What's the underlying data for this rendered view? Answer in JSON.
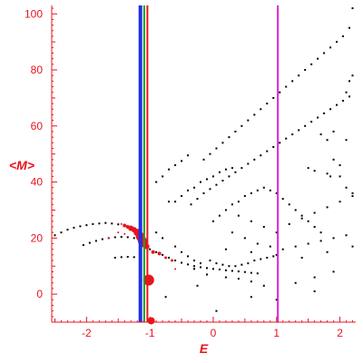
{
  "chart_data": {
    "type": "scatter",
    "title": "",
    "xlabel": "E",
    "ylabel": "<M>",
    "xlim": [
      -2.55,
      2.25
    ],
    "ylim": [
      -10,
      103
    ],
    "xticks": [
      -2,
      -1,
      0,
      1,
      2
    ],
    "yticks": [
      0,
      20,
      40,
      60,
      80,
      100
    ],
    "grid": false,
    "colors": {
      "axis": "#e8141c",
      "points_black": "#000000",
      "points_red": "#e8141c",
      "line_blue": "#1f2ef0",
      "line_green": "#1aa01a",
      "line_red": "#e8141c",
      "line_magenta": "#e020e0"
    },
    "vertical_lines": [
      {
        "x": -1.15,
        "color": "#1f2ef0"
      },
      {
        "x": -1.09,
        "color": "#1aa01a"
      },
      {
        "x": -1.04,
        "color": "#e8141c"
      },
      {
        "x": 1.02,
        "color": "#e020e0"
      }
    ],
    "series": [
      {
        "color": "#000000",
        "values": [
          [
            -2.5,
            21.0
          ],
          [
            -2.4,
            22.0
          ],
          [
            -2.3,
            23.0
          ],
          [
            -2.2,
            23.7
          ],
          [
            -2.1,
            24.2
          ],
          [
            -2.0,
            24.6
          ],
          [
            -1.9,
            25.0
          ],
          [
            -1.8,
            25.2
          ],
          [
            -1.7,
            25.4
          ],
          [
            -1.6,
            25.2
          ],
          [
            -1.5,
            24.9
          ],
          [
            -1.4,
            24.4
          ],
          [
            -1.3,
            23.5
          ],
          [
            -2.05,
            17.5
          ],
          [
            -1.95,
            18.3
          ],
          [
            -1.85,
            19.0
          ],
          [
            -1.75,
            19.6
          ],
          [
            -1.65,
            20.0
          ],
          [
            -1.55,
            20.3
          ],
          [
            -1.45,
            20.4
          ],
          [
            -1.35,
            20.3
          ],
          [
            -1.25,
            20.0
          ],
          [
            -1.55,
            13.0
          ],
          [
            -1.45,
            13.2
          ],
          [
            -1.35,
            13.3
          ],
          [
            -1.25,
            13.2
          ],
          [
            -1.0,
            16.0
          ],
          [
            -0.9,
            15.0
          ],
          [
            -0.8,
            14.0
          ],
          [
            -0.7,
            13.0
          ],
          [
            -0.6,
            12.0
          ],
          [
            -0.5,
            11.2
          ],
          [
            -0.4,
            10.6
          ],
          [
            -0.3,
            10.0
          ],
          [
            -0.2,
            9.6
          ],
          [
            -0.1,
            9.3
          ],
          [
            0.0,
            9.0
          ],
          [
            0.1,
            8.8
          ],
          [
            0.2,
            8.5
          ],
          [
            0.3,
            8.3
          ],
          [
            0.4,
            8.1
          ],
          [
            0.5,
            7.9
          ],
          [
            0.6,
            7.6
          ],
          [
            0.7,
            7.4
          ],
          [
            -0.9,
            22.0
          ],
          [
            -0.8,
            20.0
          ],
          [
            -0.6,
            17.0
          ],
          [
            -0.5,
            15.0
          ],
          [
            -0.4,
            13.5
          ],
          [
            -0.3,
            12.0
          ],
          [
            -0.2,
            11.0
          ],
          [
            -0.05,
            12.0
          ],
          [
            0.05,
            11.0
          ],
          [
            0.15,
            10.5
          ],
          [
            0.25,
            10.0
          ],
          [
            0.35,
            10.0
          ],
          [
            0.45,
            10.5
          ],
          [
            0.55,
            11.0
          ],
          [
            0.65,
            12.0
          ],
          [
            0.75,
            12.5
          ],
          [
            0.85,
            13.0
          ],
          [
            0.95,
            13.5
          ],
          [
            -0.3,
            9.0
          ],
          [
            -0.1,
            7.0
          ],
          [
            0.2,
            6.0
          ],
          [
            0.4,
            5.5
          ],
          [
            0.6,
            4.5
          ],
          [
            0.8,
            3.0
          ],
          [
            1.0,
            -2.0
          ],
          [
            1.3,
            4.0
          ],
          [
            1.6,
            6.0
          ],
          [
            1.9,
            8.0
          ],
          [
            -0.75,
            -1.0
          ],
          [
            -0.25,
            3.0
          ],
          [
            0.05,
            -6.0
          ],
          [
            0.6,
            -1.0
          ],
          [
            1.6,
            1.0
          ],
          [
            -0.35,
            32.0
          ],
          [
            -0.25,
            34.0
          ],
          [
            -0.15,
            36.0
          ],
          [
            -0.05,
            37.5
          ],
          [
            0.05,
            39.0
          ],
          [
            0.15,
            40.5
          ],
          [
            0.25,
            42.0
          ],
          [
            0.35,
            43.5
          ],
          [
            0.45,
            45.0
          ],
          [
            0.55,
            46.5
          ],
          [
            0.65,
            48.0
          ],
          [
            0.75,
            49.5
          ],
          [
            0.85,
            51.0
          ],
          [
            0.95,
            52.5
          ],
          [
            1.05,
            54.0
          ],
          [
            1.15,
            55.5
          ],
          [
            1.25,
            57.0
          ],
          [
            1.35,
            58.5
          ],
          [
            1.45,
            60.0
          ],
          [
            1.55,
            61.5
          ],
          [
            1.65,
            63.0
          ],
          [
            1.75,
            64.5
          ],
          [
            1.85,
            66.0
          ],
          [
            1.95,
            67.5
          ],
          [
            2.05,
            69.0
          ],
          [
            2.15,
            70.5
          ],
          [
            -0.15,
            48.0
          ],
          [
            -0.05,
            50.0
          ],
          [
            0.05,
            52.0
          ],
          [
            0.15,
            54.0
          ],
          [
            0.25,
            56.0
          ],
          [
            0.35,
            58.0
          ],
          [
            0.45,
            60.0
          ],
          [
            0.55,
            62.0
          ],
          [
            0.65,
            64.0
          ],
          [
            0.75,
            66.0
          ],
          [
            0.85,
            68.0
          ],
          [
            0.95,
            70.0
          ],
          [
            1.05,
            72.0
          ],
          [
            1.15,
            74.0
          ],
          [
            1.25,
            76.0
          ],
          [
            1.35,
            78.0
          ],
          [
            1.45,
            80.0
          ],
          [
            1.55,
            82.0
          ],
          [
            1.65,
            84.0
          ],
          [
            1.75,
            86.0
          ],
          [
            1.85,
            88.0
          ],
          [
            1.95,
            90.0
          ],
          [
            2.05,
            92.0
          ],
          [
            2.15,
            95.0
          ],
          [
            2.2,
            102.0
          ],
          [
            -0.9,
            40.0
          ],
          [
            -0.8,
            42.0
          ],
          [
            -0.7,
            44.5
          ],
          [
            -0.6,
            46.0
          ],
          [
            -0.5,
            47.5
          ],
          [
            -0.4,
            49.5
          ],
          [
            -0.7,
            33.0
          ],
          [
            -0.6,
            33.0
          ],
          [
            -0.5,
            35.0
          ],
          [
            -0.4,
            37.0
          ],
          [
            -0.3,
            38.0
          ],
          [
            -0.2,
            40.0
          ],
          [
            -0.1,
            41.0
          ],
          [
            0.0,
            42.0
          ],
          [
            0.1,
            43.5
          ],
          [
            0.2,
            44.5
          ],
          [
            0.3,
            45.0
          ],
          [
            0.0,
            26.0
          ],
          [
            0.1,
            28.0
          ],
          [
            0.2,
            30.0
          ],
          [
            0.3,
            32.0
          ],
          [
            0.4,
            33.0
          ],
          [
            0.5,
            35.0
          ],
          [
            0.6,
            36.0
          ],
          [
            0.7,
            37.0
          ],
          [
            0.8,
            38.0
          ],
          [
            0.9,
            37.0
          ],
          [
            1.0,
            36.0
          ],
          [
            1.1,
            34.0
          ],
          [
            1.2,
            32.0
          ],
          [
            1.3,
            30.0
          ],
          [
            1.4,
            28.0
          ],
          [
            1.5,
            26.0
          ],
          [
            1.6,
            24.0
          ],
          [
            1.7,
            22.0
          ],
          [
            0.3,
            22.0
          ],
          [
            0.5,
            20.0
          ],
          [
            0.7,
            18.0
          ],
          [
            0.9,
            17.0
          ],
          [
            1.1,
            16.0
          ],
          [
            1.3,
            17.0
          ],
          [
            1.5,
            18.0
          ],
          [
            1.7,
            19.0
          ],
          [
            1.9,
            20.0
          ],
          [
            2.1,
            21.0
          ],
          [
            0.4,
            28.0
          ],
          [
            0.6,
            26.0
          ],
          [
            0.8,
            24.0
          ],
          [
            1.0,
            22.0
          ],
          [
            1.2,
            25.0
          ],
          [
            1.4,
            27.0
          ],
          [
            1.6,
            29.0
          ],
          [
            1.8,
            31.0
          ],
          [
            2.0,
            33.0
          ],
          [
            2.2,
            35.0
          ],
          [
            0.2,
            16.0
          ],
          [
            0.6,
            15.0
          ],
          [
            1.0,
            14.0
          ],
          [
            1.4,
            13.0
          ],
          [
            1.8,
            15.0
          ],
          [
            2.2,
            17.0
          ],
          [
            1.5,
            45.0
          ],
          [
            1.6,
            44.0
          ],
          [
            1.8,
            43.0
          ],
          [
            2.0,
            42.0
          ],
          [
            2.1,
            38.0
          ],
          [
            2.2,
            36.0
          ],
          [
            1.7,
            57.0
          ],
          [
            1.8,
            55.0
          ],
          [
            1.9,
            58.0
          ],
          [
            2.1,
            72.0
          ],
          [
            2.15,
            76.0
          ],
          [
            2.2,
            78.0
          ],
          [
            2.0,
            46.0
          ],
          [
            1.9,
            48.0
          ],
          [
            1.85,
            42.0
          ],
          [
            2.1,
            55.0
          ]
        ]
      },
      {
        "color": "#e8141c",
        "values": [
          [
            -1.45,
            25.0
          ],
          [
            -1.4,
            24.5
          ],
          [
            -1.35,
            24.0
          ],
          [
            -1.3,
            23.5
          ],
          [
            -1.25,
            23.0
          ],
          [
            -1.2,
            22.0
          ],
          [
            -1.15,
            20.5
          ],
          [
            -1.12,
            19.0
          ],
          [
            -1.1,
            18.0
          ],
          [
            -1.05,
            17.0
          ],
          [
            -0.95,
            15.0
          ],
          [
            -0.85,
            14.5
          ],
          [
            -0.75,
            13.0
          ],
          [
            -0.65,
            12.0
          ],
          [
            -0.6,
            9.0
          ],
          [
            -1.5,
            22.0
          ],
          [
            -1.4,
            21.5
          ],
          [
            -1.65,
            20.0
          ]
        ],
        "sizes": [
          1,
          2,
          2,
          3,
          3,
          4,
          5,
          5,
          4,
          3,
          2,
          2,
          1.5,
          1.5,
          1,
          1,
          1,
          1
        ]
      },
      {
        "color": "#e8141c",
        "values": [
          [
            -1.02,
            5.0
          ],
          [
            -0.98,
            -9.5
          ]
        ],
        "sizes": [
          6,
          4
        ]
      }
    ]
  }
}
